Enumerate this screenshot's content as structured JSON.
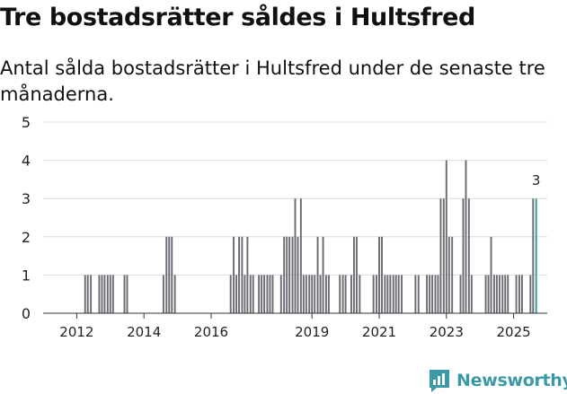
{
  "header": {
    "title": "Tre bostadsrätter såldes i Hultsfred",
    "subtitle": "Antal sålda bostadsrätter i Hultsfred under de senaste tre månaderna."
  },
  "brand": {
    "name": "Newsworthy",
    "icon": "newsworthy-logo-icon",
    "color": "#3a9aa6"
  },
  "chart_data": {
    "type": "bar",
    "title": "Tre bostadsrätter såldes i Hultsfred",
    "subtitle": "Antal sålda bostadsrätter i Hultsfred under de senaste tre månaderna.",
    "xlabel": "",
    "ylabel": "",
    "ylim": [
      0,
      5
    ],
    "y_ticks": [
      0,
      1,
      2,
      3,
      4,
      5
    ],
    "grid": true,
    "x_range": [
      2011.0,
      2026.0
    ],
    "x_ticks": [
      {
        "label": "2012",
        "value": 2012
      },
      {
        "label": "2014",
        "value": 2014
      },
      {
        "label": "2016",
        "value": 2016
      },
      {
        "label": "2019",
        "value": 2019
      },
      {
        "label": "2021",
        "value": 2021
      },
      {
        "label": "2023",
        "value": 2023
      },
      {
        "label": "2025",
        "value": 2025
      }
    ],
    "bar_color": "#6b6b73",
    "highlight_color": "#2a9d99",
    "annotation": {
      "text": "3",
      "target": "last"
    },
    "series": [
      {
        "name": "Antal sålda bostadsrätter",
        "points": [
          {
            "x": 2012.25,
            "y": 1
          },
          {
            "x": 2012.33,
            "y": 1
          },
          {
            "x": 2012.42,
            "y": 1
          },
          {
            "x": 2012.67,
            "y": 1
          },
          {
            "x": 2012.75,
            "y": 1
          },
          {
            "x": 2012.83,
            "y": 1
          },
          {
            "x": 2012.92,
            "y": 1
          },
          {
            "x": 2013.0,
            "y": 1
          },
          {
            "x": 2013.08,
            "y": 1
          },
          {
            "x": 2013.42,
            "y": 1
          },
          {
            "x": 2013.5,
            "y": 1
          },
          {
            "x": 2014.58,
            "y": 1
          },
          {
            "x": 2014.67,
            "y": 2
          },
          {
            "x": 2014.75,
            "y": 2
          },
          {
            "x": 2014.83,
            "y": 2
          },
          {
            "x": 2014.92,
            "y": 1
          },
          {
            "x": 2016.58,
            "y": 1
          },
          {
            "x": 2016.67,
            "y": 2
          },
          {
            "x": 2016.75,
            "y": 1
          },
          {
            "x": 2016.83,
            "y": 2
          },
          {
            "x": 2016.92,
            "y": 2
          },
          {
            "x": 2017.0,
            "y": 1
          },
          {
            "x": 2017.08,
            "y": 2
          },
          {
            "x": 2017.17,
            "y": 1
          },
          {
            "x": 2017.25,
            "y": 1
          },
          {
            "x": 2017.42,
            "y": 1
          },
          {
            "x": 2017.5,
            "y": 1
          },
          {
            "x": 2017.58,
            "y": 1
          },
          {
            "x": 2017.67,
            "y": 1
          },
          {
            "x": 2017.75,
            "y": 1
          },
          {
            "x": 2017.83,
            "y": 1
          },
          {
            "x": 2018.08,
            "y": 1
          },
          {
            "x": 2018.17,
            "y": 2
          },
          {
            "x": 2018.25,
            "y": 2
          },
          {
            "x": 2018.33,
            "y": 2
          },
          {
            "x": 2018.42,
            "y": 2
          },
          {
            "x": 2018.5,
            "y": 3
          },
          {
            "x": 2018.58,
            "y": 2
          },
          {
            "x": 2018.67,
            "y": 3
          },
          {
            "x": 2018.75,
            "y": 1
          },
          {
            "x": 2018.83,
            "y": 1
          },
          {
            "x": 2018.92,
            "y": 1
          },
          {
            "x": 2019.0,
            "y": 1
          },
          {
            "x": 2019.08,
            "y": 1
          },
          {
            "x": 2019.17,
            "y": 2
          },
          {
            "x": 2019.25,
            "y": 1
          },
          {
            "x": 2019.33,
            "y": 2
          },
          {
            "x": 2019.42,
            "y": 1
          },
          {
            "x": 2019.5,
            "y": 1
          },
          {
            "x": 2019.83,
            "y": 1
          },
          {
            "x": 2019.92,
            "y": 1
          },
          {
            "x": 2020.0,
            "y": 1
          },
          {
            "x": 2020.17,
            "y": 1
          },
          {
            "x": 2020.25,
            "y": 2
          },
          {
            "x": 2020.33,
            "y": 2
          },
          {
            "x": 2020.42,
            "y": 1
          },
          {
            "x": 2020.83,
            "y": 1
          },
          {
            "x": 2020.92,
            "y": 1
          },
          {
            "x": 2021.0,
            "y": 2
          },
          {
            "x": 2021.08,
            "y": 2
          },
          {
            "x": 2021.17,
            "y": 1
          },
          {
            "x": 2021.25,
            "y": 1
          },
          {
            "x": 2021.33,
            "y": 1
          },
          {
            "x": 2021.42,
            "y": 1
          },
          {
            "x": 2021.5,
            "y": 1
          },
          {
            "x": 2021.58,
            "y": 1
          },
          {
            "x": 2021.67,
            "y": 1
          },
          {
            "x": 2022.08,
            "y": 1
          },
          {
            "x": 2022.17,
            "y": 1
          },
          {
            "x": 2022.42,
            "y": 1
          },
          {
            "x": 2022.5,
            "y": 1
          },
          {
            "x": 2022.58,
            "y": 1
          },
          {
            "x": 2022.67,
            "y": 1
          },
          {
            "x": 2022.75,
            "y": 1
          },
          {
            "x": 2022.83,
            "y": 3
          },
          {
            "x": 2022.92,
            "y": 3
          },
          {
            "x": 2023.0,
            "y": 4
          },
          {
            "x": 2023.08,
            "y": 2
          },
          {
            "x": 2023.17,
            "y": 2
          },
          {
            "x": 2023.42,
            "y": 1
          },
          {
            "x": 2023.5,
            "y": 3
          },
          {
            "x": 2023.58,
            "y": 4
          },
          {
            "x": 2023.67,
            "y": 3
          },
          {
            "x": 2023.75,
            "y": 1
          },
          {
            "x": 2024.17,
            "y": 1
          },
          {
            "x": 2024.25,
            "y": 1
          },
          {
            "x": 2024.33,
            "y": 2
          },
          {
            "x": 2024.42,
            "y": 1
          },
          {
            "x": 2024.5,
            "y": 1
          },
          {
            "x": 2024.58,
            "y": 1
          },
          {
            "x": 2024.67,
            "y": 1
          },
          {
            "x": 2024.75,
            "y": 1
          },
          {
            "x": 2024.83,
            "y": 1
          },
          {
            "x": 2025.08,
            "y": 1
          },
          {
            "x": 2025.17,
            "y": 1
          },
          {
            "x": 2025.25,
            "y": 1
          },
          {
            "x": 2025.5,
            "y": 1
          },
          {
            "x": 2025.58,
            "y": 3
          },
          {
            "x": 2025.67,
            "y": 3
          }
        ]
      }
    ]
  }
}
